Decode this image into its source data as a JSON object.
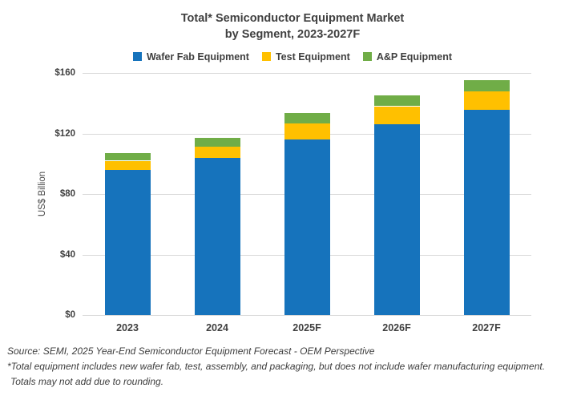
{
  "title": {
    "line1": "Total* Semiconductor Equipment Market",
    "line2": "by Segment, 2023-2027F"
  },
  "footer": {
    "source": "Source: SEMI, 2025 Year-End Semiconductor Equipment Forecast - OEM Perspective",
    "note1": "*Total equipment includes new wafer fab, test, assembly, and packaging, but does not include wafer manufacturing equipment.",
    "note2": "Totals may not add due to rounding."
  },
  "colors": {
    "wafer_fab_blue": "#1673BC",
    "test_yellow": "#FFC000",
    "ap_green": "#70AD47",
    "gridline": "#D9D9D9",
    "text": "#404040"
  },
  "chart_data": {
    "type": "bar",
    "stacked": true,
    "title": "Total* Semiconductor Equipment Market by Segment, 2023-2027F",
    "xlabel": "",
    "ylabel": "US$ Billion",
    "ylim": [
      0,
      160
    ],
    "grid": true,
    "legend_position": "top",
    "categories": [
      "2023",
      "2024",
      "2025F",
      "2026F",
      "2027F"
    ],
    "series": [
      {
        "name": "Wafer Fab Equipment",
        "color": "#1673BC",
        "values": [
          96,
          104,
          116,
          126,
          135.5
        ]
      },
      {
        "name": "Test Equipment",
        "color": "#FFC000",
        "values": [
          6,
          7.5,
          10.5,
          12,
          12.5
        ]
      },
      {
        "name": "A&P Equipment",
        "color": "#70AD47",
        "values": [
          5,
          5.5,
          7,
          7,
          7.5
        ]
      }
    ],
    "y_ticks": [
      {
        "value": 0,
        "label": "$0"
      },
      {
        "value": 40,
        "label": "$40"
      },
      {
        "value": 80,
        "label": "$80"
      },
      {
        "value": 120,
        "label": "$120"
      },
      {
        "value": 160,
        "label": "$160"
      }
    ]
  }
}
